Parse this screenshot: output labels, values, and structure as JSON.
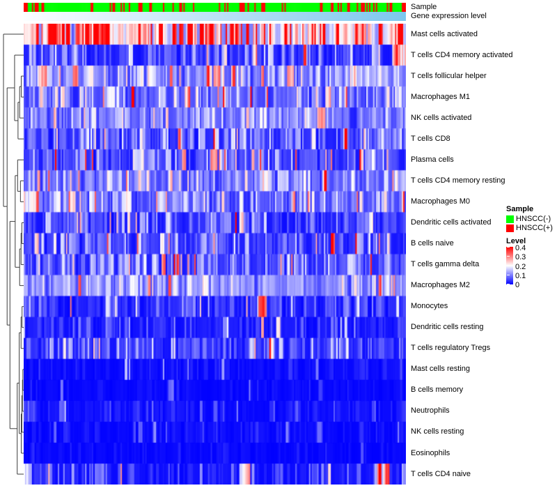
{
  "annotations": {
    "sample_label": "Sample",
    "gene_label": "Gene expression level"
  },
  "legend": {
    "sample": {
      "title": "Sample",
      "items": [
        {
          "label": "HNSCC(-)",
          "color": "#00FF00"
        },
        {
          "label": "HNSCC(+)",
          "color": "#FF0000"
        }
      ]
    },
    "level": {
      "title": "Level",
      "ticks": [
        "0.4",
        "0.3",
        "0.2",
        "0.1",
        "0"
      ],
      "gradient_top": "#FF0000",
      "gradient_mid": "#FFFFFF",
      "gradient_bottom": "#0000FF"
    }
  },
  "chart_data": {
    "type": "heatmap",
    "title": "",
    "n_cols": 280,
    "value_range": [
      0,
      0.4
    ],
    "grid": false,
    "legend_position": "right",
    "color_scale": {
      "min": 0,
      "mid": 0.2,
      "max": 0.4,
      "min_color": "#0000FF",
      "mid_color": "#FFFFFF",
      "max_color": "#FF0000"
    },
    "col_annotations": {
      "sample": {
        "label": "Sample",
        "classes": [
          "HNSCC(-)",
          "HNSCC(+)"
        ],
        "colors": [
          "#00FF00",
          "#FF0000"
        ],
        "positive_fraction": 0.24
      },
      "gene_expression": {
        "label": "Gene expression level",
        "gradient_left": "#FCFEFF",
        "gradient_right": "#7CC7EE",
        "order": "low-to-high"
      }
    },
    "rows": [
      {
        "name": "Mast cells activated",
        "mean_level": 0.25,
        "spread": 0.5,
        "trend": [
          1.15,
          1.1,
          1.0,
          0.95,
          0.95,
          0.88
        ]
      },
      {
        "name": "T cells CD4 memory activated",
        "mean_level": 0.05,
        "spread": 0.8,
        "spikes": {
          "p": 0.01,
          "value": 0.3
        },
        "patches": [
          {
            "from": 0.965,
            "to": 1.0,
            "add": 0.2
          }
        ]
      },
      {
        "name": "T cells follicular helper",
        "mean_level": 0.11,
        "spread": 0.5
      },
      {
        "name": "Macrophages M1",
        "mean_level": 0.09,
        "spread": 0.6
      },
      {
        "name": "NK cells activated",
        "mean_level": 0.1,
        "spread": 0.5
      },
      {
        "name": "T cells CD8",
        "mean_level": 0.06,
        "spread": 0.8,
        "patches": [
          {
            "from": 0.9,
            "to": 1.0,
            "add": 0.03
          }
        ]
      },
      {
        "name": "Plasma cells",
        "mean_level": 0.07,
        "spread": 0.8,
        "spikes": {
          "p": 0.015,
          "value": 0.32
        }
      },
      {
        "name": "T cells CD4 memory resting",
        "mean_level": 0.1,
        "spread": 0.55,
        "spikes": {
          "p": 0.008,
          "value": 0.28
        }
      },
      {
        "name": "Macrophages M0",
        "mean_level": 0.095,
        "spread": 0.6,
        "spikes": {
          "p": 0.006,
          "value": 0.3
        },
        "patches": [
          {
            "from": 0.0,
            "to": 0.02,
            "add": 0.1
          }
        ]
      },
      {
        "name": "Dendritic cells activated",
        "mean_level": 0.05,
        "spread": 0.8,
        "spikes": {
          "p": 0.005,
          "value": 0.3
        }
      },
      {
        "name": "B cells naive",
        "mean_level": 0.06,
        "spread": 0.85
      },
      {
        "name": "T cells gamma delta",
        "mean_level": 0.065,
        "spread": 0.8,
        "spikes": {
          "p": 0.004,
          "value": 0.25
        }
      },
      {
        "name": "Macrophages M2",
        "mean_level": 0.11,
        "spread": 0.45
      },
      {
        "name": "Monocytes",
        "mean_level": 0.035,
        "spread": 0.9
      },
      {
        "name": "Dendritic cells resting",
        "mean_level": 0.025,
        "spread": 0.9
      },
      {
        "name": "T cells regulatory Tregs",
        "mean_level": 0.045,
        "spread": 0.85
      },
      {
        "name": "Mast cells resting",
        "mean_level": 0.008,
        "spread": 1.0,
        "spikes": {
          "p": 0.01,
          "value": 0.12
        }
      },
      {
        "name": "B cells memory",
        "mean_level": 0.005,
        "spread": 1.0,
        "spikes": {
          "p": 0.008,
          "value": 0.1
        }
      },
      {
        "name": "Neutrophils",
        "mean_level": 0.012,
        "spread": 1.0,
        "spikes": {
          "p": 0.01,
          "value": 0.08
        },
        "patches": [
          {
            "from": 0.0,
            "to": 0.03,
            "add": 0.05
          }
        ]
      },
      {
        "name": "NK cells resting",
        "mean_level": 0.008,
        "spread": 1.0,
        "spikes": {
          "p": 0.008,
          "value": 0.09
        }
      },
      {
        "name": "Eosinophils",
        "mean_level": 0.004,
        "spread": 1.0,
        "spikes": {
          "p": 0.005,
          "value": 0.08
        }
      },
      {
        "name": "T cells CD4 naive",
        "mean_level": 0.02,
        "spread": 1.0,
        "spikes": {
          "p": 0.02,
          "value": 0.12
        },
        "patches": [
          {
            "from": 0.0,
            "to": 0.015,
            "add": 0.13
          },
          {
            "from": 0.92,
            "to": 0.95,
            "add": 0.14
          }
        ]
      }
    ],
    "row_dendrogram": {
      "h": 1.0,
      "c": [
        0,
        {
          "h": 0.82,
          "c": [
            {
              "h": 0.45,
              "c": [
                1,
                {
                  "h": 0.28,
                  "c": [
                    {
                      "h": 0.2,
                      "c": [
                        {
                          "h": 0.12,
                          "c": [
                            2,
                            3
                          ]
                        },
                        4
                      ]
                    },
                    5
                  ]
                }
              ]
            },
            {
              "h": 0.68,
              "c": [
                {
                  "h": 0.42,
                  "c": [
                    {
                      "h": 0.3,
                      "c": [
                        6,
                        {
                          "h": 0.16,
                          "c": [
                            7,
                            8
                          ]
                        }
                      ]
                    },
                    {
                      "h": 0.2,
                      "c": [
                        {
                          "h": 0.13,
                          "c": [
                            {
                              "h": 0.09,
                              "c": [
                                9,
                                10
                              ]
                            },
                            11
                          ]
                        },
                        12
                      ]
                    }
                  ]
                },
                {
                  "h": 0.32,
                  "c": [
                    {
                      "h": 0.22,
                      "c": [
                        {
                          "h": 0.13,
                          "c": [
                            {
                              "h": 0.08,
                              "c": [
                                13,
                                14
                              ]
                            },
                            15
                          ]
                        },
                        {
                          "h": 0.17,
                          "c": [
                            {
                              "h": 0.12,
                              "c": [
                                {
                                  "h": 0.09,
                                  "c": [
                                    {
                                      "h": 0.06,
                                      "c": [
                                        {
                                          "h": 0.04,
                                          "c": [
                                            16,
                                            17
                                          ]
                                        },
                                        18
                                      ]
                                    },
                                    19
                                  ]
                                },
                                20
                              ]
                            }
                          ]
                        }
                      ]
                    },
                    21
                  ]
                }
              ]
            }
          ]
        }
      ]
    }
  }
}
